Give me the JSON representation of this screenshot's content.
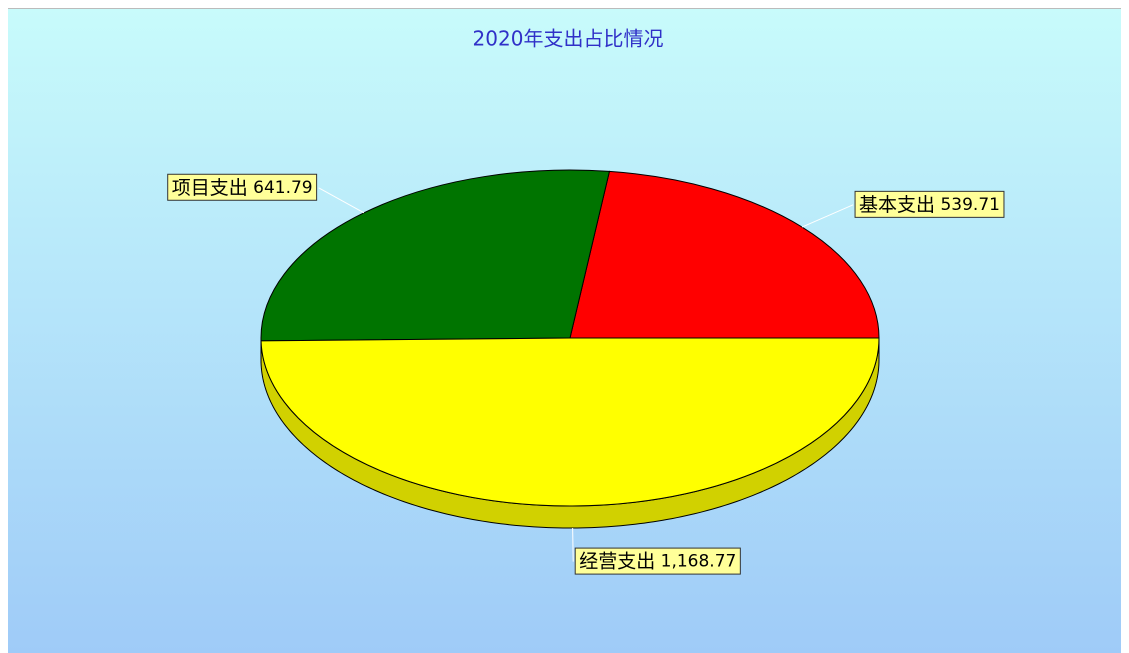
{
  "chart_data": {
    "type": "pie",
    "title": "2020年支出占比情况",
    "categories": [
      "基本支出",
      "项目支出",
      "经营支出"
    ],
    "values": [
      539.71,
      641.79,
      1168.77
    ],
    "value_labels": [
      "539.71",
      "641.79",
      "1,168.77"
    ],
    "colors": [
      "#ff0000",
      "#007400",
      "#ffff00"
    ]
  }
}
